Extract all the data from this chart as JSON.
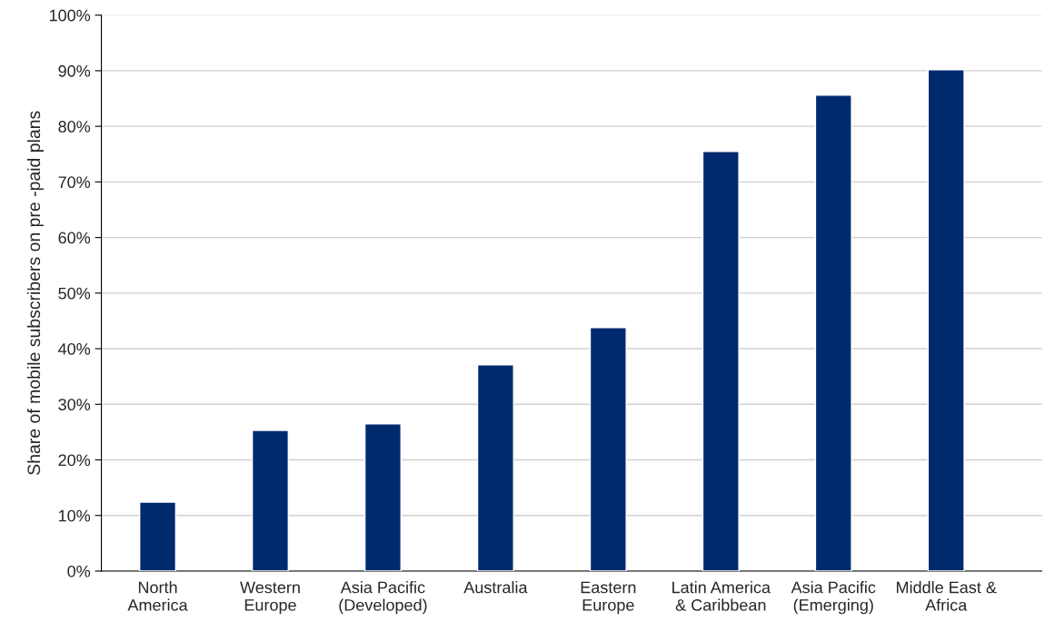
{
  "chart_data": {
    "type": "bar",
    "categories": [
      "North\nAmerica",
      "Western\nEurope",
      "Asia Pacific\n(Developed)",
      "Australia",
      "Eastern\nEurope",
      "Latin America\n& Caribbean",
      "Asia Pacific\n(Emerging)",
      "Middle East &\nAfrica"
    ],
    "values": [
      12.4,
      25.3,
      26.5,
      37.1,
      43.8,
      75.5,
      85.6,
      90.2
    ],
    "color": "#002a6e",
    "ylabel": "Share of mobile subscribers on pre -paid plans",
    "ylim": [
      0,
      100
    ],
    "yticks": [
      {
        "value": 0,
        "label": "0%"
      },
      {
        "value": 10,
        "label": "10%"
      },
      {
        "value": 20,
        "label": "20%"
      },
      {
        "value": 30,
        "label": "30%"
      },
      {
        "value": 40,
        "label": "40%"
      },
      {
        "value": 50,
        "label": "50%"
      },
      {
        "value": 60,
        "label": "60%"
      },
      {
        "value": 70,
        "label": "70%"
      },
      {
        "value": 80,
        "label": "80%"
      },
      {
        "value": 90,
        "label": "90%"
      },
      {
        "value": 100,
        "label": "100%"
      }
    ],
    "grid": "y",
    "legend": false
  }
}
